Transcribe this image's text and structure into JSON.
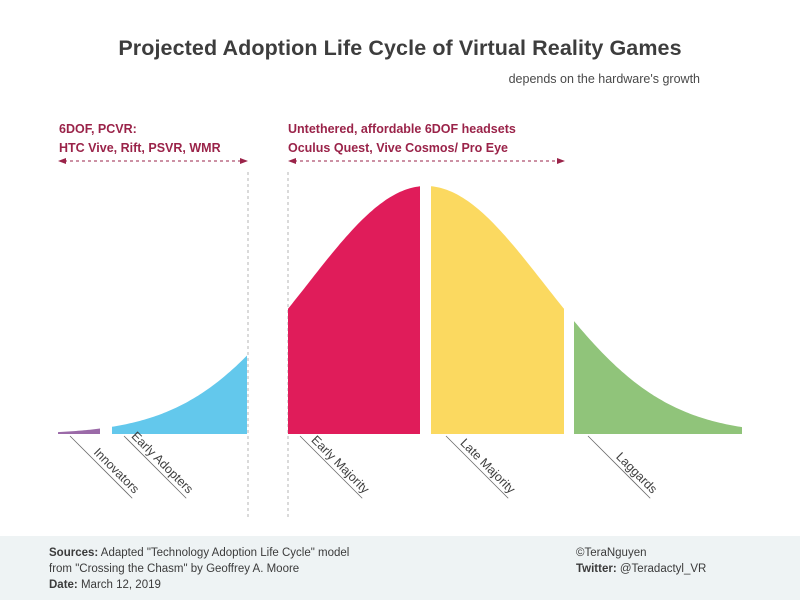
{
  "title": "Projected Adoption Life Cycle of Virtual Reality Games",
  "subtitle": "depends on the hardware's growth",
  "eras": [
    {
      "line1": "6DOF, PCVR:",
      "line2": "HTC Vive, Rift, PSVR, WMR"
    },
    {
      "line1": "Untethered, affordable 6DOF headsets",
      "line2": "Oculus Quest, Vive Cosmos/ Pro Eye"
    }
  ],
  "colors": {
    "innovators": "#9b6aa8",
    "early_adopters": "#63c8ec",
    "early_majority": "#e01c5a",
    "late_majority": "#fbd960",
    "laggards": "#90c47a",
    "era_accent": "#9a2349"
  },
  "segments": [
    {
      "key": "innovators",
      "label": "Innovators"
    },
    {
      "key": "early_adopters",
      "label": "Early Adopters"
    },
    {
      "key": "early_majority",
      "label": "Early Majority"
    },
    {
      "key": "late_majority",
      "label": "Late Majority"
    },
    {
      "key": "laggards",
      "label": "Laggards"
    }
  ],
  "footer": {
    "sources_label": "Sources:",
    "sources_text": "Adapted \"Technology Adoption Life Cycle\" model",
    "sources_text2": "from \"Crossing the Chasm\" by Geoffrey A. Moore",
    "date_label": "Date:",
    "date_text": "March 12, 2019",
    "copyright": "©TeraNguyen",
    "twitter_label": "Twitter:",
    "twitter_handle": "@Teradactyl_VR"
  }
}
